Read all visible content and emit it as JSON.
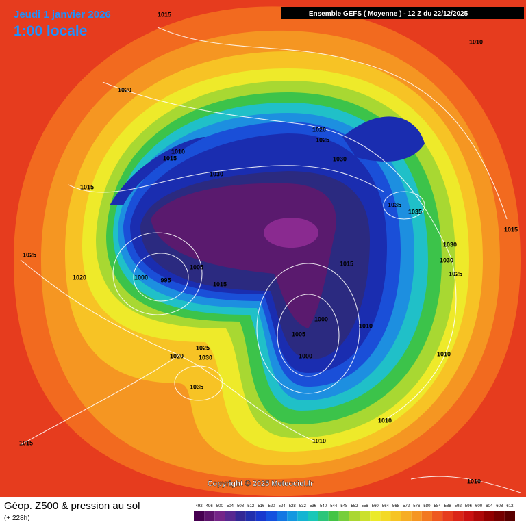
{
  "header": {
    "date": "Jeudi 1 janvier 2026",
    "time": "1:00 locale",
    "model": "Ensemble GEFS ( Moyenne ) - 12 Z du 22/12/2025"
  },
  "map": {
    "pressure_labels": [
      "1015",
      "1010",
      "1020",
      "1020",
      "1025",
      "1010",
      "1015",
      "1030",
      "1030",
      "1015",
      "1035",
      "1035",
      "1015",
      "1030",
      "1025",
      "1030",
      "1005",
      "1015",
      "1025",
      "1020",
      "1000",
      "995",
      "1015",
      "1000",
      "1010",
      "1005",
      "1025",
      "1020",
      "1030",
      "1000",
      "1010",
      "1035",
      "1010",
      "1010",
      "1015",
      "1010"
    ]
  },
  "copyright": "Copyright © 2025 Meteociel.fr",
  "footer": {
    "title": "Géop. Z500 & pression au sol",
    "lead": "(+ 228h)"
  },
  "legend": {
    "labels": [
      492,
      496,
      500,
      504,
      508,
      512,
      516,
      520,
      524,
      528,
      532,
      536,
      540,
      544,
      548,
      552,
      556,
      560,
      564,
      568,
      572,
      576,
      580,
      584,
      588,
      592,
      596,
      600,
      604,
      608,
      612
    ]
  }
}
